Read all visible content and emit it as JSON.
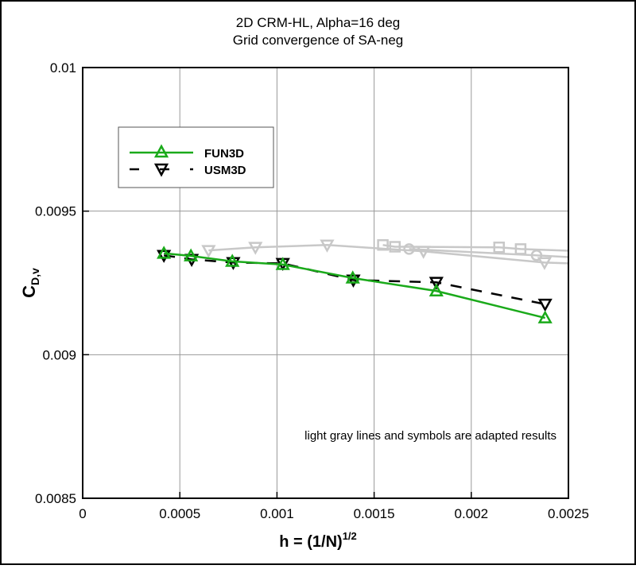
{
  "chart_data": {
    "type": "line",
    "title": "2D CRM-HL, Alpha=16 deg",
    "subtitle": "Grid convergence of SA-neg",
    "xlabel": "h = (1/N)",
    "xlabel_sup": "1/2",
    "ylabel": "C",
    "ylabel_sub": "D,v",
    "xlim": [
      0,
      0.0025
    ],
    "ylim": [
      0.0085,
      0.01
    ],
    "xticks": [
      "0",
      "0.0005",
      "0.001",
      "0.0015",
      "0.002",
      "0.0025"
    ],
    "xtick_values": [
      0,
      0.0005,
      0.001,
      0.0015,
      0.002,
      0.0025
    ],
    "yticks": [
      "0.0085",
      "0.009",
      "0.0095",
      "0.01"
    ],
    "ytick_values": [
      0.0085,
      0.009,
      0.0095,
      0.01
    ],
    "grid": true,
    "legend_placement": "top-left",
    "annotation": "light gray lines and symbols are adapted results",
    "series": [
      {
        "name": "FUN3D",
        "color": "#1aaa1a",
        "marker": "triangle-up",
        "dash": false,
        "x": [
          0.000418,
          0.000557,
          0.00077,
          0.00103,
          0.00139,
          0.00182,
          0.00238
        ],
        "y": [
          0.009353,
          0.009344,
          0.009325,
          0.009314,
          0.009267,
          0.009222,
          0.009128
        ]
      },
      {
        "name": "USM3D",
        "color": "#000000",
        "marker": "triangle-down",
        "dash": true,
        "x": [
          0.000418,
          0.000561,
          0.000775,
          0.00103,
          0.001393,
          0.00182,
          0.00238
        ],
        "y": [
          0.009346,
          0.009332,
          0.009321,
          0.009318,
          0.00926,
          0.009252,
          0.009176
        ]
      }
    ],
    "adapted_series": [
      {
        "color": "#c8c8c8",
        "marker": "triangle-down",
        "x": [
          0.000648,
          0.000889,
          0.001258,
          0.001754,
          0.002377,
          0.0025
        ],
        "y": [
          0.009363,
          0.009374,
          0.009382,
          0.00936,
          0.009321,
          0.009318
        ]
      },
      {
        "color": "#c8c8c8",
        "marker": "square",
        "x": [
          0.001545,
          0.001607,
          0.002143,
          0.002254,
          0.0025
        ],
        "y": [
          0.009382,
          0.009376,
          0.009374,
          0.009368,
          0.009362
        ]
      },
      {
        "color": "#c8c8c8",
        "marker": "circle",
        "x": [
          0.00168,
          0.002336,
          0.0025
        ],
        "y": [
          0.009368,
          0.009346,
          0.00934
        ]
      }
    ]
  }
}
